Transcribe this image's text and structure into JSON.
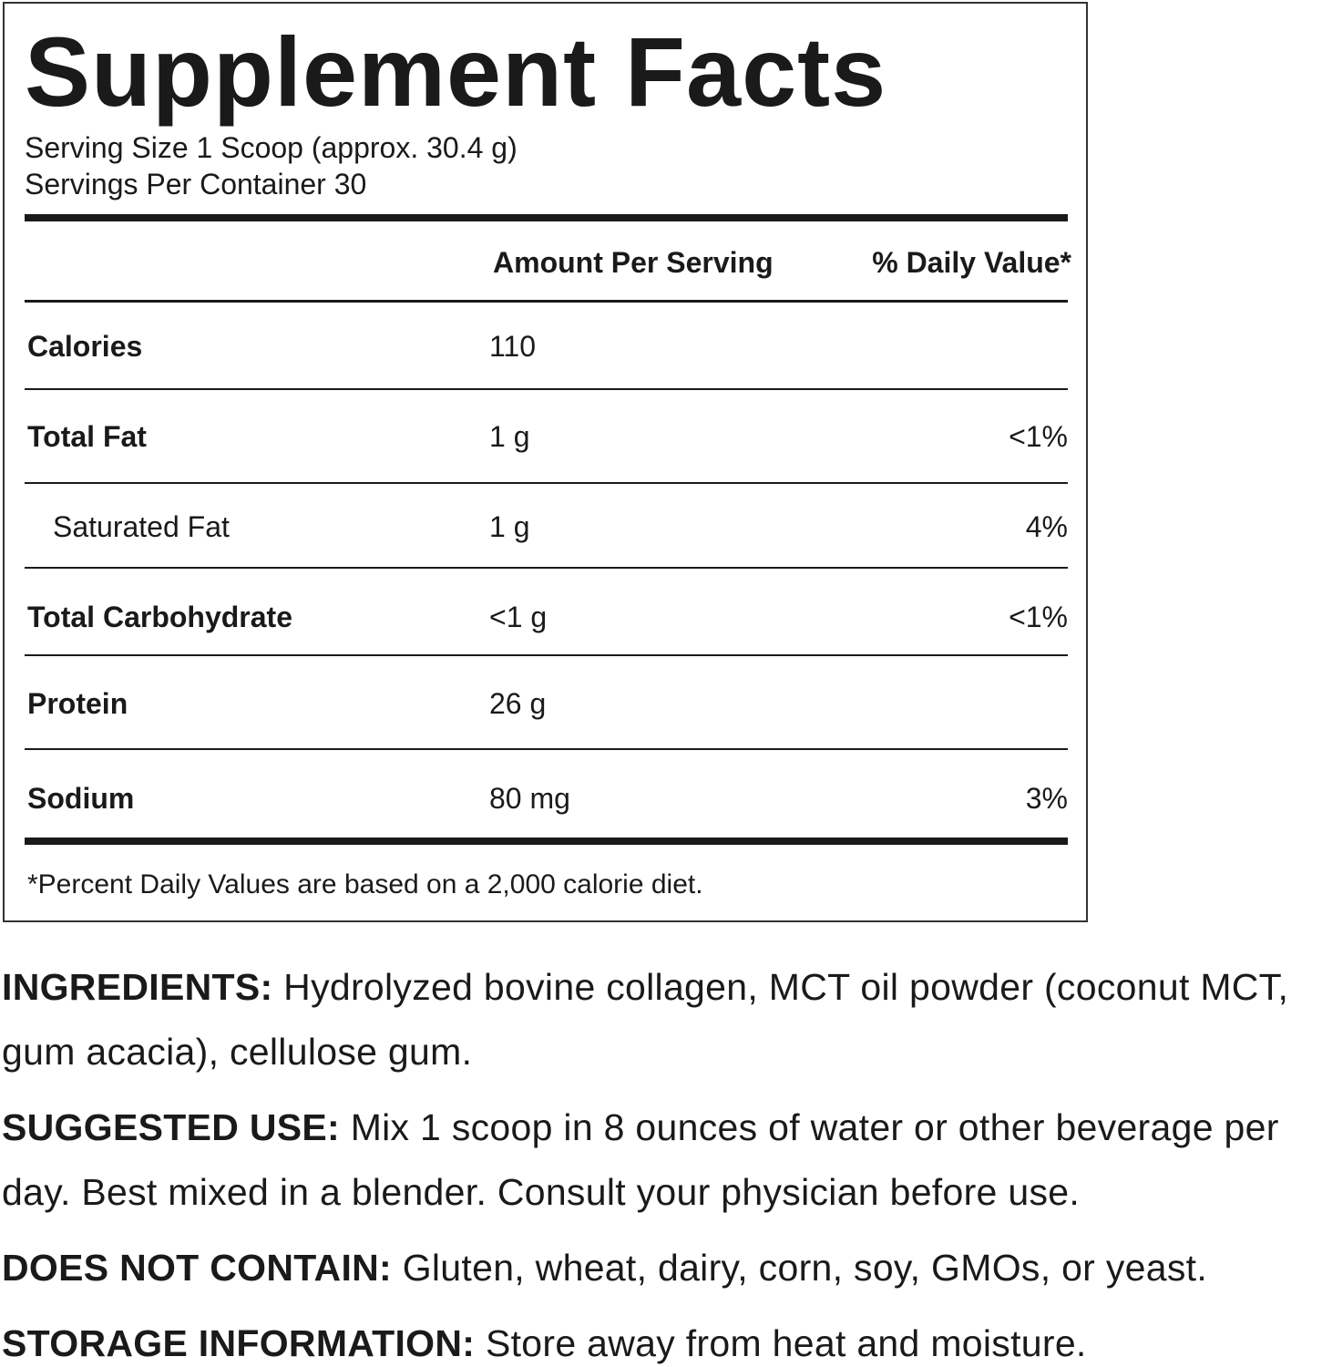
{
  "label": {
    "title": "Supplement Facts",
    "serving_size": "Serving Size 1 Scoop (approx. 30.4 g)",
    "servings_per_container": "Servings Per Container 30",
    "header": {
      "amount": "Amount Per Serving",
      "daily_value": "% Daily Value*"
    },
    "rows": [
      {
        "name": "Calories",
        "amount": "110"
      },
      {
        "name": "Total Fat",
        "amount": "1 g",
        "daily_value": "<1%"
      },
      {
        "name": "Saturated Fat",
        "amount": "1 g",
        "daily_value": "4%"
      },
      {
        "name": "Total Carbohydrate",
        "amount": "<1 g",
        "daily_value": "<1%"
      },
      {
        "name": "Protein",
        "amount": "26 g"
      },
      {
        "name": "Sodium",
        "amount": "80 mg",
        "daily_value": "3%"
      }
    ],
    "footnote": "*Percent Daily Values are based on a 2,000 calorie diet."
  },
  "sections": [
    {
      "label": "INGREDIENTS:",
      "text": "Hydrolyzed bovine collagen, MCT oil powder (coconut MCT, gum acacia), cellulose gum."
    },
    {
      "label": "SUGGESTED USE:",
      "text": "Mix 1 scoop in 8 ounces of water or other beverage per day. Best mixed in a blender. Consult your physician before use."
    },
    {
      "label": "DOES NOT CONTAIN:",
      "text": "Gluten, wheat, dairy, corn, soy, GMOs, or yeast."
    },
    {
      "label": "STORAGE INFORMATION:",
      "text": "Store away from heat and moisture."
    }
  ]
}
